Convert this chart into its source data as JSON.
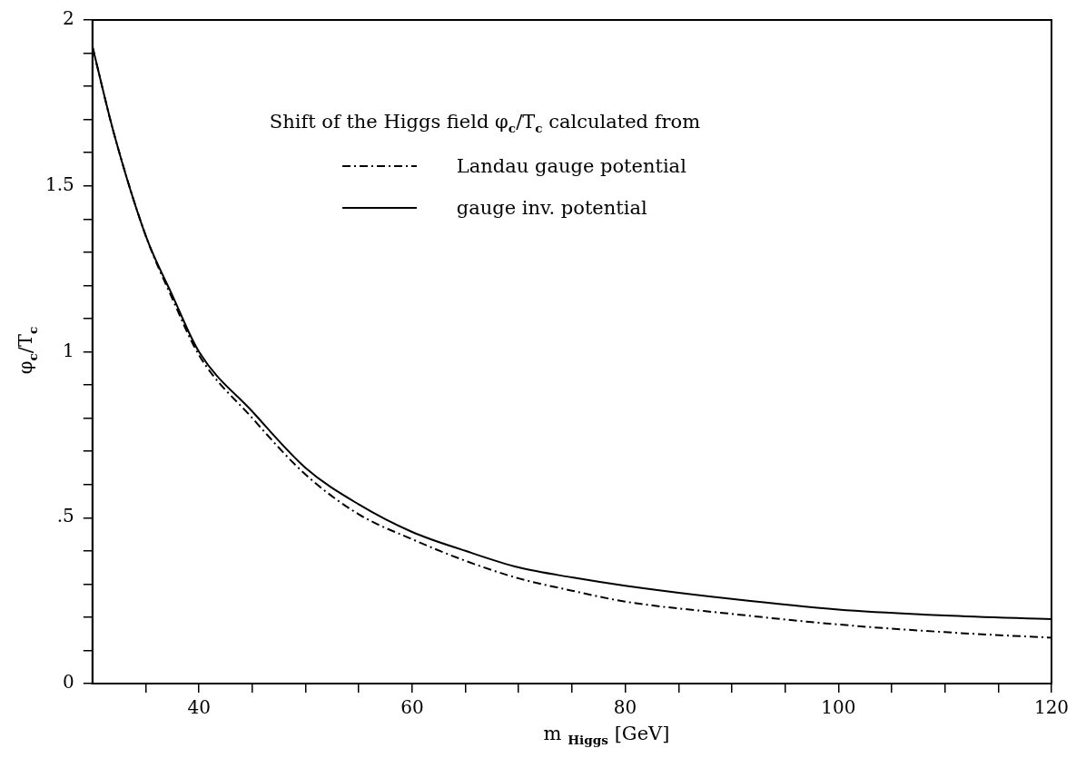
{
  "chart_data": {
    "type": "line",
    "xlabel": "m $_{Higgs}$ [GeV]",
    "ylabel": "φ$_{c}$/T$_{c}$",
    "legend_title": "Shift of the Higgs field φ$_{c}$/T$_{c}$ calculated from",
    "legend": "top",
    "grid": false,
    "marker": "none",
    "x": [
      30,
      32,
      35,
      37.5,
      40,
      45,
      50,
      55,
      60,
      65,
      70,
      75,
      80,
      90,
      100,
      110,
      120
    ],
    "series": [
      {
        "name": "Landau gauge potential",
        "color": "#000000",
        "line_style": "dashdot",
        "values": [
          1.92,
          1.66,
          1.35,
          1.16,
          0.99,
          0.8,
          0.63,
          0.51,
          0.435,
          0.37,
          0.317,
          0.28,
          0.247,
          0.21,
          0.178,
          0.155,
          0.138
        ]
      },
      {
        "name": "gauge inv. potential",
        "color": "#000000",
        "line_style": "solid",
        "values": [
          1.92,
          1.66,
          1.35,
          1.17,
          1.0,
          0.82,
          0.65,
          0.54,
          0.457,
          0.4,
          0.35,
          0.32,
          0.295,
          0.255,
          0.223,
          0.205,
          0.194
        ]
      }
    ],
    "xlim": [
      30,
      120
    ],
    "xticks": [
      {
        "value": 35,
        "label": null
      },
      40,
      {
        "value": 45,
        "label": null
      },
      {
        "value": 50,
        "label": null
      },
      {
        "value": 55,
        "label": null
      },
      60,
      {
        "value": 65,
        "label": null
      },
      {
        "value": 70,
        "label": null
      },
      {
        "value": 75,
        "label": null
      },
      80,
      {
        "value": 85,
        "label": null
      },
      {
        "value": 90,
        "label": null
      },
      {
        "value": 95,
        "label": null
      },
      100,
      {
        "value": 105,
        "label": null
      },
      {
        "value": 110,
        "label": null
      },
      {
        "value": 115,
        "label": null
      },
      120
    ],
    "ylim": [
      0,
      2
    ],
    "yticks": [
      0,
      {
        "value": 0.1,
        "label": null
      },
      {
        "value": 0.2,
        "label": null
      },
      {
        "value": 0.3,
        "label": null
      },
      {
        "value": 0.4,
        "label": null
      },
      {
        "value": 0.5,
        "label": ".5"
      },
      {
        "value": 0.6,
        "label": null
      },
      {
        "value": 0.7,
        "label": null
      },
      {
        "value": 0.8,
        "label": null
      },
      {
        "value": 0.9,
        "label": null
      },
      1,
      {
        "value": 1.1,
        "label": null
      },
      {
        "value": 1.2,
        "label": null
      },
      {
        "value": 1.3,
        "label": null
      },
      {
        "value": 1.4,
        "label": null
      },
      1.5,
      {
        "value": 1.6,
        "label": null
      },
      {
        "value": 1.7,
        "label": null
      },
      {
        "value": 1.8,
        "label": null
      },
      {
        "value": 1.9,
        "label": null
      },
      2
    ]
  }
}
